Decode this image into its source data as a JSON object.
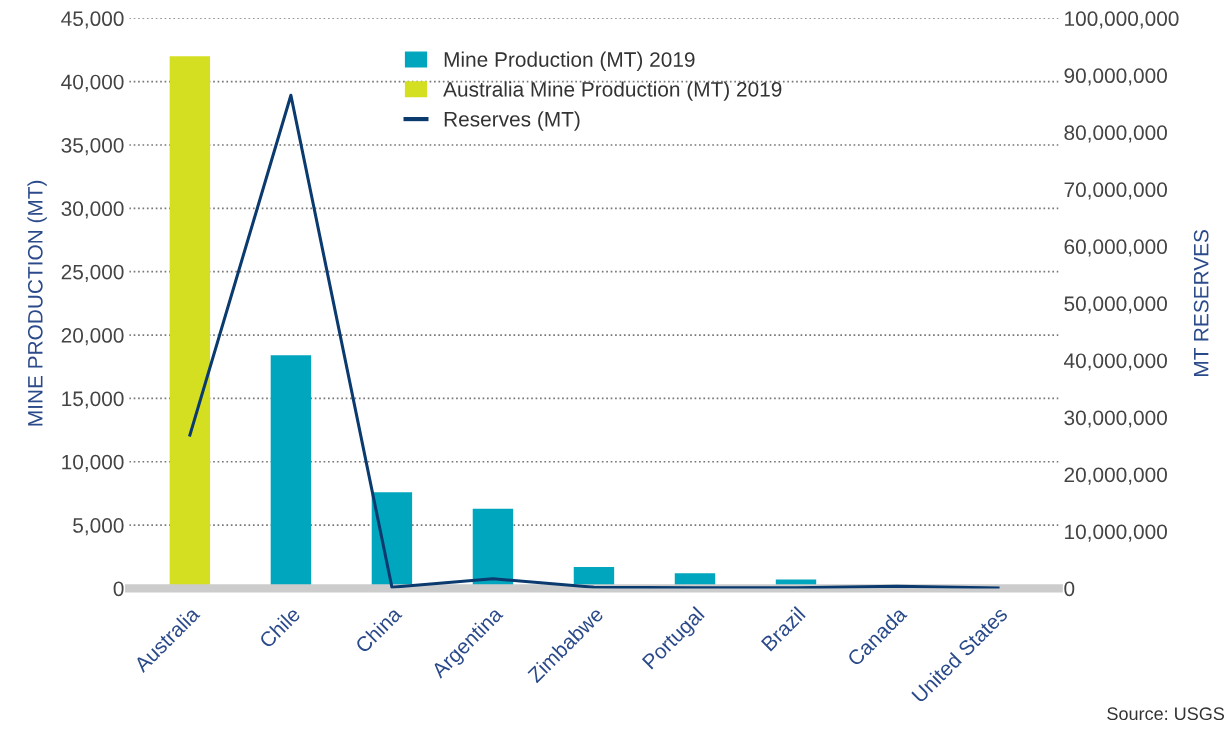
{
  "chart_data": {
    "type": "bar",
    "categories": [
      "Australia",
      "Chile",
      "China",
      "Argentina",
      "Zimbabwe",
      "Portugal",
      "Brazil",
      "Canada",
      "United States"
    ],
    "series": [
      {
        "name": "Mine Production (MT) 2019",
        "type": "bar",
        "color": "#00a6bd",
        "values": [
          null,
          18400,
          7600,
          6300,
          1700,
          1200,
          700,
          0,
          0
        ]
      },
      {
        "name": "Australia Mine Production (MT) 2019",
        "type": "bar",
        "color": "#d4df22",
        "values": [
          42000,
          null,
          null,
          null,
          null,
          null,
          null,
          null,
          null
        ]
      },
      {
        "name": "Reserves (MT)",
        "type": "line",
        "axis": "y2",
        "color": "#0b3a6f",
        "values": [
          26900000,
          86500000,
          200000,
          1700000,
          200000,
          100000,
          100000,
          400000,
          100000
        ]
      }
    ],
    "ylabel": "MINE PRODUCTION (MT)",
    "y2label": "MT RESERVES",
    "ylim": [
      0,
      45000
    ],
    "yticks": [
      {
        "value": 0,
        "label": "0"
      },
      {
        "value": 5000,
        "label": "5,000"
      },
      {
        "value": 10000,
        "label": "10,000"
      },
      {
        "value": 15000,
        "label": "15,000"
      },
      {
        "value": 20000,
        "label": "20,000"
      },
      {
        "value": 25000,
        "label": "25,000"
      },
      {
        "value": 30000,
        "label": "30,000"
      },
      {
        "value": 35000,
        "label": "35,000"
      },
      {
        "value": 40000,
        "label": "40,000"
      },
      {
        "value": 45000,
        "label": "45,000"
      }
    ],
    "y2lim": [
      0,
      100000000
    ],
    "y2ticks": [
      {
        "value": 0,
        "label": "0"
      },
      {
        "value": 10000000,
        "label": "10,000,000"
      },
      {
        "value": 20000000,
        "label": "20,000,000"
      },
      {
        "value": 30000000,
        "label": "30,000,000"
      },
      {
        "value": 40000000,
        "label": "40,000,000"
      },
      {
        "value": 50000000,
        "label": "50,000,000"
      },
      {
        "value": 60000000,
        "label": "60,000,000"
      },
      {
        "value": 70000000,
        "label": "70,000,000"
      },
      {
        "value": 80000000,
        "label": "80,000,000"
      },
      {
        "value": 90000000,
        "label": "90,000,000"
      },
      {
        "value": 100000000,
        "label": "100,000,000"
      }
    ],
    "grid": "y",
    "legend": "top",
    "line_style": "solid",
    "marker": "none",
    "annotations": [
      "Source: USGS"
    ]
  }
}
